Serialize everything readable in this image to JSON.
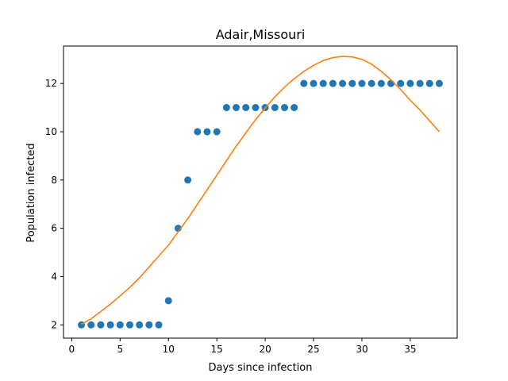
{
  "chart_data": {
    "type": "scatter",
    "title": "Adair,Missouri",
    "xlabel": "Days since infection",
    "ylabel": "Population infected",
    "xlim": [
      -0.85,
      39.85
    ],
    "ylim": [
      1.45,
      13.55
    ],
    "xticks": [
      0,
      5,
      10,
      15,
      20,
      25,
      30,
      35
    ],
    "yticks": [
      2,
      4,
      6,
      8,
      10,
      12
    ],
    "grid": false,
    "legend": "none",
    "series": [
      {
        "kind": "scatter",
        "color": "#1f77b4",
        "x": [
          1,
          2,
          3,
          4,
          5,
          6,
          7,
          8,
          9,
          10,
          11,
          12,
          13,
          14,
          15,
          16,
          17,
          18,
          19,
          20,
          21,
          22,
          23,
          24,
          25,
          26,
          27,
          28,
          29,
          30,
          31,
          32,
          33,
          34,
          35,
          36,
          37,
          38
        ],
        "y": [
          2,
          2,
          2,
          2,
          2,
          2,
          2,
          2,
          2,
          3,
          6,
          8,
          10,
          10,
          10,
          11,
          11,
          11,
          11,
          11,
          11,
          11,
          11,
          12,
          12,
          12,
          12,
          12,
          12,
          12,
          12,
          12,
          12,
          12,
          12,
          12,
          12,
          12
        ]
      },
      {
        "kind": "line",
        "color": "#ff7f0e",
        "x": [
          1,
          2,
          3,
          4,
          5,
          6,
          7,
          8,
          9,
          10,
          11,
          12,
          13,
          14,
          15,
          16,
          17,
          18,
          19,
          20,
          21,
          22,
          23,
          24,
          25,
          26,
          27,
          28,
          29,
          30,
          31,
          32,
          33,
          34,
          35,
          36,
          37,
          38
        ],
        "y": [
          2.03,
          2.25,
          2.55,
          2.86,
          3.2,
          3.55,
          3.95,
          4.4,
          4.85,
          5.3,
          5.85,
          6.4,
          7.0,
          7.6,
          8.2,
          8.8,
          9.4,
          9.95,
          10.5,
          10.98,
          11.45,
          11.85,
          12.2,
          12.5,
          12.75,
          12.95,
          13.07,
          13.12,
          13.1,
          13.0,
          12.8,
          12.5,
          12.15,
          11.75,
          11.3,
          10.9,
          10.45,
          10.0
        ]
      }
    ]
  }
}
